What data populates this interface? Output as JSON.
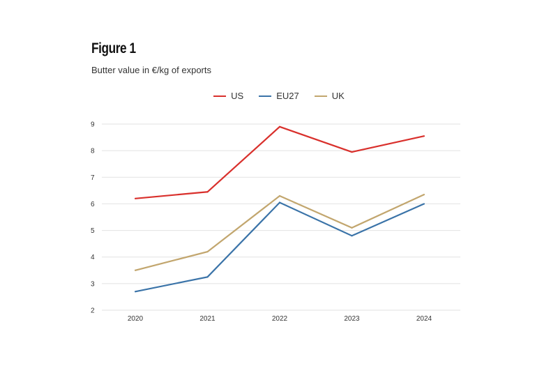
{
  "figure": {
    "title": "Figure 1",
    "subtitle": "Butter value in €/kg of exports"
  },
  "chart_data": {
    "type": "line",
    "title": "Figure 1",
    "subtitle": "Butter value in €/kg of exports",
    "xlabel": "",
    "ylabel": "",
    "categories": [
      "2020",
      "2021",
      "2022",
      "2023",
      "2024"
    ],
    "yticks": [
      2,
      3,
      4,
      5,
      6,
      7,
      8,
      9
    ],
    "ylim": [
      2,
      9
    ],
    "grid": true,
    "legend_position": "top-center",
    "series": [
      {
        "name": "US",
        "color": "#d9302c",
        "values": [
          6.2,
          6.45,
          8.9,
          7.95,
          8.55
        ]
      },
      {
        "name": "EU27",
        "color": "#3a73a8",
        "values": [
          2.7,
          3.25,
          6.05,
          4.8,
          6.0
        ]
      },
      {
        "name": "UK",
        "color": "#c2a66e",
        "values": [
          3.5,
          4.2,
          6.3,
          5.1,
          6.35
        ]
      }
    ]
  }
}
